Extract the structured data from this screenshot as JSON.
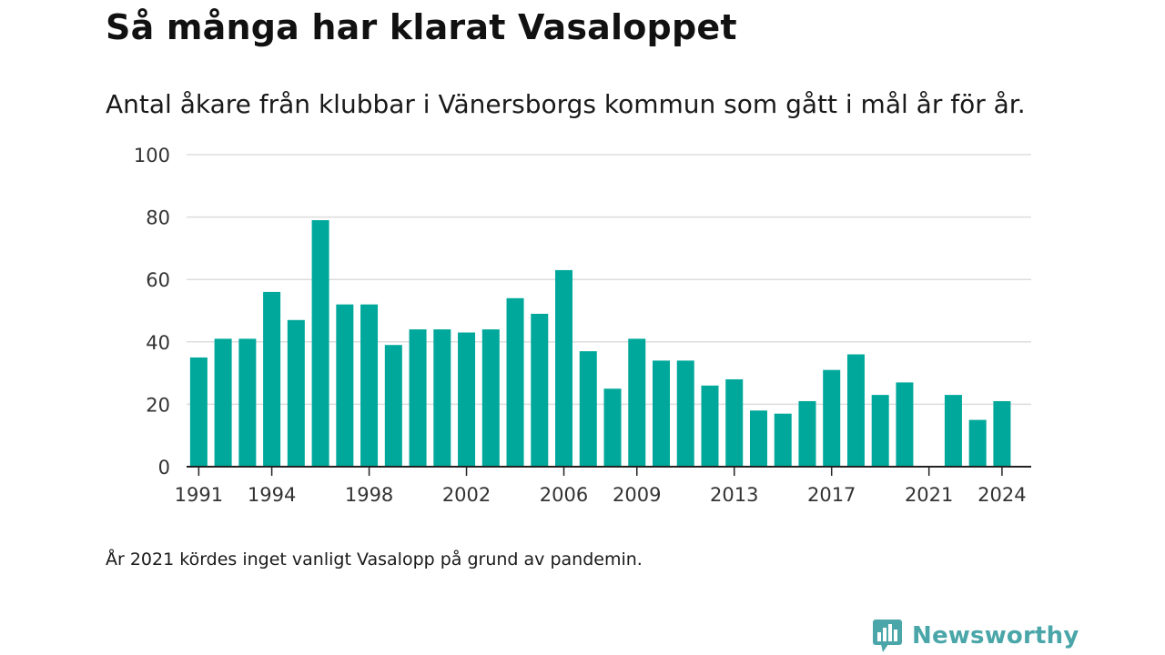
{
  "title": "Så många har klarat Vasaloppet",
  "subtitle": "Antal åkare från klubbar i Vänersborgs kommun som gått i mål år för år.",
  "footnote": "År 2021 kördes inget vanligt Vasalopp på grund av pandemin.",
  "brand": {
    "name": "Newsworthy",
    "icon": "newsworthy-logo-icon",
    "color": "#4aa6a8"
  },
  "colors": {
    "bar": "#00a89b",
    "grid": "#dddddd",
    "axis": "#222222"
  },
  "chart_data": {
    "type": "bar",
    "x": [
      1991,
      1992,
      1993,
      1994,
      1995,
      1996,
      1997,
      1998,
      1999,
      2000,
      2001,
      2002,
      2003,
      2004,
      2005,
      2006,
      2007,
      2008,
      2009,
      2010,
      2011,
      2012,
      2013,
      2014,
      2015,
      2016,
      2017,
      2018,
      2019,
      2020,
      2021,
      2022,
      2023,
      2024
    ],
    "values": [
      35,
      41,
      41,
      56,
      47,
      79,
      52,
      52,
      39,
      44,
      44,
      43,
      44,
      54,
      49,
      63,
      37,
      25,
      41,
      34,
      34,
      26,
      28,
      18,
      17,
      21,
      31,
      36,
      23,
      27,
      null,
      23,
      15,
      21
    ],
    "x_tick_labels": [
      1991,
      1994,
      1998,
      2002,
      2006,
      2009,
      2013,
      2017,
      2021,
      2024
    ],
    "y_ticks": [
      0,
      20,
      40,
      60,
      80,
      100
    ],
    "ylim": [
      0,
      100
    ],
    "grid": true,
    "legend": "none"
  }
}
